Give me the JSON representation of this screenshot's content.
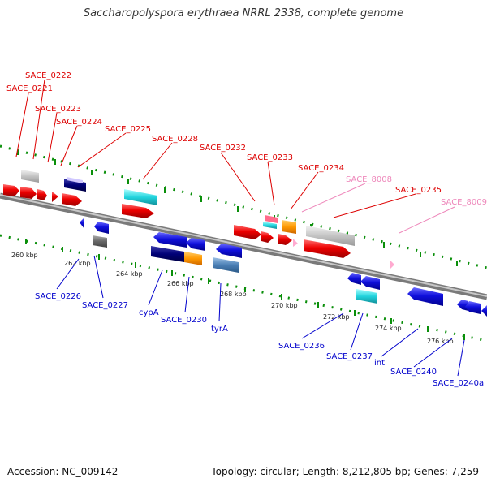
{
  "title": "Saccharopolyspora erythraea NRRL 2338, complete genome",
  "footer": {
    "accession": "Accession: NC_009142",
    "topology": "Topology: circular; Length: 8,212,805 bp; Genes: 7,259"
  },
  "colors": {
    "backbone": "#888888",
    "dots": "#0a8f0a",
    "top_label": "#dd0000",
    "top_label_faded": "#ee88bb",
    "bottom_label": "#0000cc"
  },
  "scale_ticks": [
    "260 kbp",
    "262 kbp",
    "264 kbp",
    "266 kbp",
    "268 kbp",
    "270 kbp",
    "272 kbp",
    "274 kbp",
    "276 kbp"
  ],
  "top_genes": [
    "SACE_0222",
    "SACE_0221",
    "SACE_0223",
    "SACE_0224",
    "SACE_0225",
    "SACE_0228",
    "SACE_0232",
    "SACE_0233",
    "SACE_0234",
    "SACE_8008",
    "SACE_0235",
    "SACE_8009"
  ],
  "bottom_genes": [
    "SACE_0226",
    "SACE_0227",
    "cypA",
    "SACE_0230",
    "tyrA",
    "SACE_0236",
    "SACE_0237",
    "int",
    "SACE_0240",
    "SACE_0240a"
  ]
}
